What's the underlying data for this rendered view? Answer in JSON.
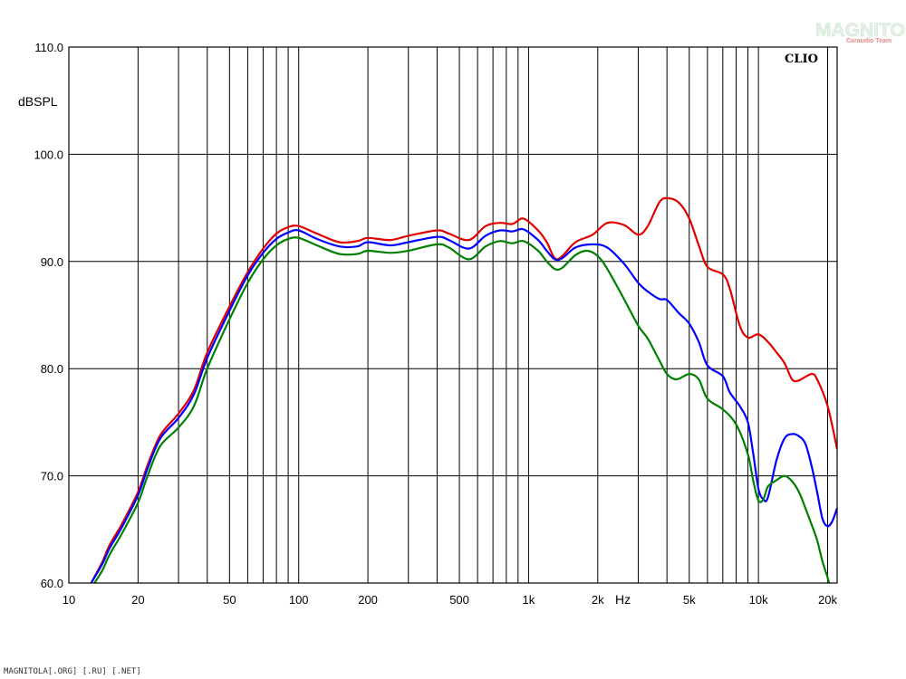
{
  "chart_data": {
    "type": "line",
    "x_scale": "log",
    "xlim": [
      10,
      22000
    ],
    "ylim": [
      60,
      110
    ],
    "ylabel": "dBSPL",
    "xunit": "Hz",
    "grid": true,
    "y_ticks": [
      "110.0",
      "100.0",
      "90.0",
      "80.0",
      "70.0",
      "60.0"
    ],
    "y_tick_values": [
      110,
      100,
      90,
      80,
      70,
      60
    ],
    "x_ticks": [
      "10",
      "20",
      "50",
      "100",
      "200",
      "500",
      "1k",
      "2k",
      "5k",
      "10k",
      "20k"
    ],
    "x_tick_values": [
      10,
      20,
      50,
      100,
      200,
      500,
      1000,
      2000,
      5000,
      10000,
      20000
    ],
    "x_grid": [
      20,
      30,
      40,
      50,
      60,
      70,
      80,
      90,
      100,
      200,
      300,
      400,
      500,
      600,
      700,
      800,
      900,
      1000,
      2000,
      3000,
      4000,
      5000,
      6000,
      7000,
      8000,
      9000,
      10000,
      20000
    ],
    "badge": "CLIO",
    "series": [
      {
        "color": "#e00000",
        "points": [
          [
            12.5,
            60.0
          ],
          [
            14,
            62
          ],
          [
            15,
            63.5
          ],
          [
            17,
            65.5
          ],
          [
            20,
            68.5
          ],
          [
            22,
            71
          ],
          [
            25,
            73.8
          ],
          [
            30,
            75.8
          ],
          [
            35,
            78.0
          ],
          [
            40,
            81.5
          ],
          [
            50,
            85.8
          ],
          [
            60,
            89.0
          ],
          [
            70,
            91.2
          ],
          [
            80,
            92.6
          ],
          [
            90,
            93.2
          ],
          [
            100,
            93.3
          ],
          [
            120,
            92.6
          ],
          [
            150,
            91.8
          ],
          [
            180,
            91.9
          ],
          [
            200,
            92.2
          ],
          [
            250,
            92.0
          ],
          [
            300,
            92.4
          ],
          [
            400,
            92.9
          ],
          [
            450,
            92.6
          ],
          [
            550,
            92.0
          ],
          [
            650,
            93.3
          ],
          [
            750,
            93.6
          ],
          [
            850,
            93.5
          ],
          [
            950,
            94.0
          ],
          [
            1100,
            92.9
          ],
          [
            1200,
            91.8
          ],
          [
            1300,
            90.3
          ],
          [
            1400,
            90.5
          ],
          [
            1600,
            91.8
          ],
          [
            1900,
            92.5
          ],
          [
            2200,
            93.6
          ],
          [
            2600,
            93.4
          ],
          [
            3000,
            92.5
          ],
          [
            3300,
            93.3
          ],
          [
            3700,
            95.5
          ],
          [
            4000,
            95.9
          ],
          [
            4500,
            95.5
          ],
          [
            5000,
            94.0
          ],
          [
            5500,
            91.5
          ],
          [
            6000,
            89.5
          ],
          [
            7000,
            88.8
          ],
          [
            7500,
            87.5
          ],
          [
            8300,
            84.0
          ],
          [
            9000,
            82.9
          ],
          [
            10000,
            83.2
          ],
          [
            11000,
            82.5
          ],
          [
            12000,
            81.5
          ],
          [
            13000,
            80.5
          ],
          [
            14000,
            79.0
          ],
          [
            15000,
            78.9
          ],
          [
            17000,
            79.5
          ],
          [
            18000,
            79.0
          ],
          [
            20000,
            76.5
          ],
          [
            22000,
            72.5
          ]
        ]
      },
      {
        "color": "#0000ff",
        "points": [
          [
            12.5,
            60.0
          ],
          [
            14,
            61.8
          ],
          [
            15,
            63.2
          ],
          [
            17,
            65.2
          ],
          [
            20,
            68.2
          ],
          [
            22,
            70.7
          ],
          [
            25,
            73.5
          ],
          [
            30,
            75.4
          ],
          [
            35,
            77.6
          ],
          [
            40,
            81.0
          ],
          [
            50,
            85.4
          ],
          [
            60,
            88.7
          ],
          [
            70,
            90.8
          ],
          [
            80,
            92.1
          ],
          [
            90,
            92.7
          ],
          [
            100,
            92.9
          ],
          [
            120,
            92.1
          ],
          [
            150,
            91.4
          ],
          [
            180,
            91.4
          ],
          [
            200,
            91.8
          ],
          [
            250,
            91.5
          ],
          [
            300,
            91.8
          ],
          [
            400,
            92.3
          ],
          [
            450,
            92.0
          ],
          [
            550,
            91.2
          ],
          [
            650,
            92.4
          ],
          [
            750,
            92.9
          ],
          [
            850,
            92.8
          ],
          [
            950,
            93.0
          ],
          [
            1100,
            92.0
          ],
          [
            1200,
            91.0
          ],
          [
            1300,
            90.2
          ],
          [
            1400,
            90.3
          ],
          [
            1600,
            91.3
          ],
          [
            1900,
            91.6
          ],
          [
            2200,
            91.3
          ],
          [
            2600,
            89.8
          ],
          [
            3000,
            88.0
          ],
          [
            3300,
            87.2
          ],
          [
            3700,
            86.5
          ],
          [
            4000,
            86.4
          ],
          [
            4500,
            85.2
          ],
          [
            5000,
            84.2
          ],
          [
            5500,
            82.5
          ],
          [
            6000,
            80.3
          ],
          [
            7000,
            79.3
          ],
          [
            7500,
            77.8
          ],
          [
            8300,
            76.5
          ],
          [
            9000,
            75.0
          ],
          [
            9500,
            72.0
          ],
          [
            10000,
            68.8
          ],
          [
            10500,
            67.8
          ],
          [
            11000,
            68.0
          ],
          [
            12000,
            71.5
          ],
          [
            13000,
            73.5
          ],
          [
            14000,
            73.9
          ],
          [
            15000,
            73.7
          ],
          [
            16000,
            73.0
          ],
          [
            17000,
            71.0
          ],
          [
            18000,
            68.5
          ],
          [
            19000,
            66.0
          ],
          [
            20000,
            65.3
          ],
          [
            21000,
            65.8
          ],
          [
            22000,
            67.0
          ]
        ]
      },
      {
        "color": "#008000",
        "points": [
          [
            12.5,
            59.5
          ],
          [
            14,
            61.2
          ],
          [
            15,
            62.6
          ],
          [
            17,
            64.6
          ],
          [
            20,
            67.5
          ],
          [
            22,
            70.0
          ],
          [
            25,
            72.8
          ],
          [
            30,
            74.5
          ],
          [
            35,
            76.5
          ],
          [
            40,
            80.0
          ],
          [
            50,
            84.6
          ],
          [
            60,
            88.0
          ],
          [
            70,
            90.2
          ],
          [
            80,
            91.5
          ],
          [
            90,
            92.1
          ],
          [
            100,
            92.2
          ],
          [
            120,
            91.5
          ],
          [
            150,
            90.7
          ],
          [
            180,
            90.7
          ],
          [
            200,
            91.0
          ],
          [
            250,
            90.8
          ],
          [
            300,
            91.0
          ],
          [
            400,
            91.6
          ],
          [
            450,
            91.3
          ],
          [
            550,
            90.2
          ],
          [
            650,
            91.4
          ],
          [
            750,
            91.9
          ],
          [
            850,
            91.7
          ],
          [
            950,
            91.9
          ],
          [
            1100,
            91.0
          ],
          [
            1200,
            90.0
          ],
          [
            1300,
            89.3
          ],
          [
            1400,
            89.4
          ],
          [
            1600,
            90.6
          ],
          [
            1800,
            91.0
          ],
          [
            2000,
            90.5
          ],
          [
            2200,
            89.3
          ],
          [
            2600,
            86.5
          ],
          [
            3000,
            84.0
          ],
          [
            3300,
            82.8
          ],
          [
            3700,
            80.8
          ],
          [
            4000,
            79.5
          ],
          [
            4400,
            79.0
          ],
          [
            5000,
            79.5
          ],
          [
            5500,
            79.0
          ],
          [
            6000,
            77.2
          ],
          [
            7000,
            76.2
          ],
          [
            8000,
            74.8
          ],
          [
            9000,
            72.0
          ],
          [
            9500,
            69.5
          ],
          [
            10000,
            67.7
          ],
          [
            10500,
            67.8
          ],
          [
            11000,
            69.0
          ],
          [
            12000,
            69.6
          ],
          [
            13000,
            70.0
          ],
          [
            14000,
            69.5
          ],
          [
            15000,
            68.5
          ],
          [
            16000,
            67.0
          ],
          [
            17000,
            65.5
          ],
          [
            18000,
            64.0
          ],
          [
            19000,
            62.0
          ],
          [
            20000,
            60.5
          ],
          [
            20500,
            59.5
          ]
        ]
      }
    ]
  },
  "watermark": {
    "brand": "MAGNITOLA",
    "team": "Caraudio Team",
    "color": "#e4f2e4"
  },
  "footer": {
    "text": "MAGNITOLA[.ORG] [.RU] [.NET]"
  }
}
